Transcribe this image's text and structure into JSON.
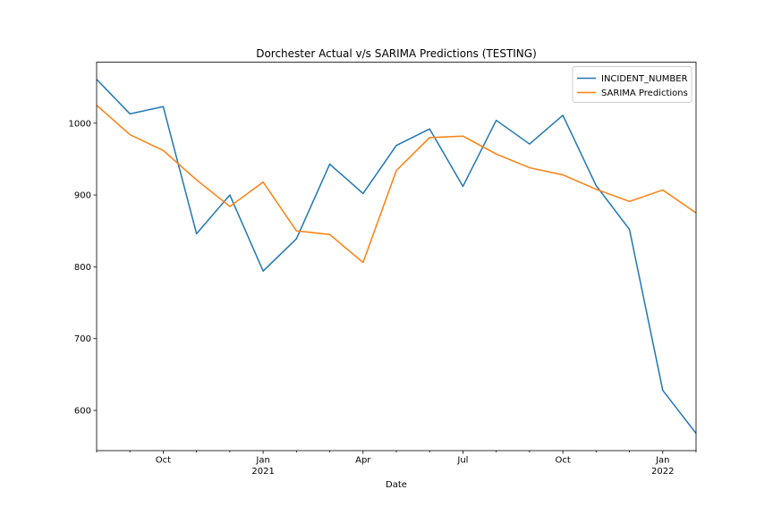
{
  "chart_data": {
    "type": "line",
    "title": "Dorchester Actual v/s SARIMA Predictions (TESTING)",
    "xlabel": "Date",
    "ylabel": "",
    "x": [
      "2020-08",
      "2020-09",
      "2020-10",
      "2020-11",
      "2020-12",
      "2021-01",
      "2021-02",
      "2021-03",
      "2021-04",
      "2021-05",
      "2021-06",
      "2021-07",
      "2021-08",
      "2021-09",
      "2021-10",
      "2021-11",
      "2021-12",
      "2022-01",
      "2022-02"
    ],
    "xlim": [
      "2020-08",
      "2022-02"
    ],
    "ylim": [
      544,
      1085
    ],
    "x_ticks_major": [
      {
        "x": "2020-10",
        "label": "Oct",
        "sublabel": ""
      },
      {
        "x": "2021-01",
        "label": "Jan",
        "sublabel": "2021"
      },
      {
        "x": "2021-04",
        "label": "Apr",
        "sublabel": ""
      },
      {
        "x": "2021-07",
        "label": "Jul",
        "sublabel": ""
      },
      {
        "x": "2021-10",
        "label": "Oct",
        "sublabel": ""
      },
      {
        "x": "2022-01",
        "label": "Jan",
        "sublabel": "2022"
      }
    ],
    "y_ticks": [
      600,
      700,
      800,
      900,
      1000
    ],
    "grid": false,
    "legend_position": "top-right",
    "series": [
      {
        "name": "INCIDENT_NUMBER",
        "color": "#1f77b4",
        "values": [
          1061,
          1013,
          1023,
          846,
          900,
          794,
          839,
          943,
          902,
          969,
          992,
          912,
          1004,
          971,
          1011,
          913,
          852,
          628,
          568
        ]
      },
      {
        "name": "SARIMA Predictions",
        "color": "#ff7f0e",
        "values": [
          1025,
          984,
          962,
          921,
          884,
          918,
          850,
          845,
          806,
          934,
          980,
          982,
          957,
          938,
          928,
          908,
          891,
          907,
          875
        ]
      }
    ]
  }
}
